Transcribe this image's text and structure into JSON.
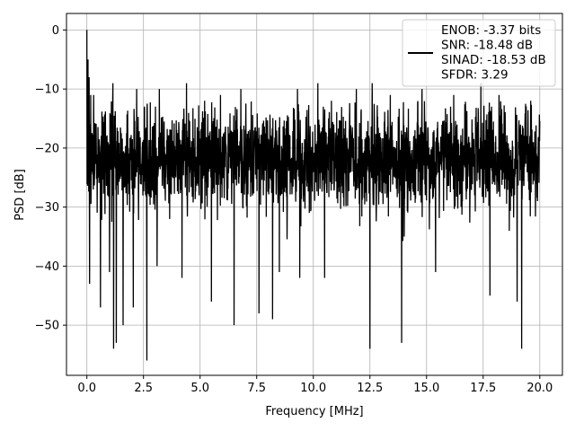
{
  "chart_data": {
    "type": "line",
    "title": "",
    "xlabel": "Frequency [MHz]",
    "ylabel": "PSD [dB]",
    "xlim": [
      -0.9,
      21.0
    ],
    "ylim": [
      -58.5,
      2.8
    ],
    "xticks": [
      0.0,
      2.5,
      5.0,
      7.5,
      10.0,
      12.5,
      15.0,
      17.5,
      20.0
    ],
    "xtick_labels": [
      "0.0",
      "2.5",
      "5.0",
      "7.5",
      "10.0",
      "12.5",
      "15.0",
      "17.5",
      "20.0"
    ],
    "yticks": [
      0,
      -10,
      -20,
      -30,
      -40,
      -50
    ],
    "ytick_labels": [
      "0",
      "−10",
      "−20",
      "−30",
      "−40",
      "−50"
    ],
    "grid": true,
    "legend_position": "top-right",
    "series": [
      {
        "name": "ENOB: -3.37 bits\nSNR: -18.48 dB\nSINAD: -18.53 dB\nSFDR: 3.29",
        "legend_lines": [
          "ENOB: -3.37 bits",
          "SNR: -18.48 dB",
          "SINAD: -18.53 dB",
          "SFDR: 3.29"
        ],
        "color": "#000000",
        "noise_floor": {
          "mean": -22,
          "upper": -12,
          "lower": -31,
          "x_range": [
            0,
            20
          ]
        },
        "peaks": [
          {
            "x": 0.0,
            "y": 0.0
          },
          {
            "x": 0.05,
            "y": -5
          },
          {
            "x": 0.1,
            "y": -8
          },
          {
            "x": 0.17,
            "y": -11
          },
          {
            "x": 0.3,
            "y": -11
          },
          {
            "x": 1.15,
            "y": -9
          },
          {
            "x": 2.2,
            "y": -10
          },
          {
            "x": 3.2,
            "y": -10
          },
          {
            "x": 4.4,
            "y": -9
          },
          {
            "x": 5.2,
            "y": -12
          },
          {
            "x": 5.9,
            "y": -11
          },
          {
            "x": 6.8,
            "y": -10
          },
          {
            "x": 8.2,
            "y": -11
          },
          {
            "x": 9.3,
            "y": -10
          },
          {
            "x": 10.2,
            "y": -9
          },
          {
            "x": 10.8,
            "y": -12
          },
          {
            "x": 11.9,
            "y": -10
          },
          {
            "x": 12.6,
            "y": -9
          },
          {
            "x": 13.4,
            "y": -11
          },
          {
            "x": 14.8,
            "y": -10
          },
          {
            "x": 16.2,
            "y": -11
          },
          {
            "x": 17.4,
            "y": -9
          },
          {
            "x": 18.2,
            "y": -11
          },
          {
            "x": 19.6,
            "y": -12
          }
        ],
        "dips": [
          {
            "x": 0.12,
            "y": -43
          },
          {
            "x": 0.6,
            "y": -47
          },
          {
            "x": 1.0,
            "y": -41
          },
          {
            "x": 1.18,
            "y": -54
          },
          {
            "x": 1.3,
            "y": -53
          },
          {
            "x": 1.6,
            "y": -50
          },
          {
            "x": 2.05,
            "y": -47
          },
          {
            "x": 2.65,
            "y": -56
          },
          {
            "x": 3.1,
            "y": -40
          },
          {
            "x": 4.2,
            "y": -42
          },
          {
            "x": 5.5,
            "y": -46
          },
          {
            "x": 6.5,
            "y": -50
          },
          {
            "x": 7.6,
            "y": -48
          },
          {
            "x": 8.2,
            "y": -49
          },
          {
            "x": 8.5,
            "y": -41
          },
          {
            "x": 9.4,
            "y": -42
          },
          {
            "x": 10.5,
            "y": -42
          },
          {
            "x": 12.5,
            "y": -54
          },
          {
            "x": 13.9,
            "y": -53
          },
          {
            "x": 15.4,
            "y": -41
          },
          {
            "x": 17.8,
            "y": -45
          },
          {
            "x": 19.2,
            "y": -54
          },
          {
            "x": 19.0,
            "y": -46
          }
        ]
      }
    ]
  }
}
